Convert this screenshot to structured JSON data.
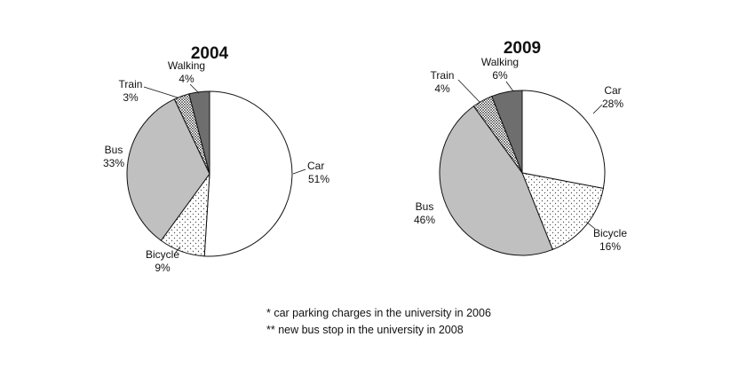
{
  "chart_data": [
    {
      "type": "pie",
      "title": "2004",
      "slices": [
        {
          "label": "Car",
          "value": 51,
          "display": "51%",
          "fill": "#ffffff",
          "pattern": "none"
        },
        {
          "label": "Bicycle",
          "value": 9,
          "display": "9%",
          "fill": "#ffffff",
          "pattern": "light-dots"
        },
        {
          "label": "Bus",
          "value": 33,
          "display": "33%",
          "fill": "#c0c0c0",
          "pattern": "none"
        },
        {
          "label": "Train",
          "value": 3,
          "display": "3%",
          "fill": "#ffffff",
          "pattern": "dense-dots"
        },
        {
          "label": "Walking",
          "value": 4,
          "display": "4%",
          "fill": "#6e6e6e",
          "pattern": "none"
        }
      ]
    },
    {
      "type": "pie",
      "title": "2009",
      "slices": [
        {
          "label": "Car",
          "value": 28,
          "display": "28%",
          "fill": "#ffffff",
          "pattern": "none"
        },
        {
          "label": "Bicycle",
          "value": 16,
          "display": "16%",
          "fill": "#ffffff",
          "pattern": "light-dots"
        },
        {
          "label": "Bus",
          "value": 46,
          "display": "46%",
          "fill": "#c0c0c0",
          "pattern": "none"
        },
        {
          "label": "Train",
          "value": 4,
          "display": "4%",
          "fill": "#ffffff",
          "pattern": "dense-dots"
        },
        {
          "label": "Walking",
          "value": 6,
          "display": "6%",
          "fill": "#6e6e6e",
          "pattern": "none"
        }
      ]
    }
  ],
  "footnotes": {
    "note1": "* car parking charges in the university in 2006",
    "note2": "** new bus stop in the university in 2008"
  }
}
